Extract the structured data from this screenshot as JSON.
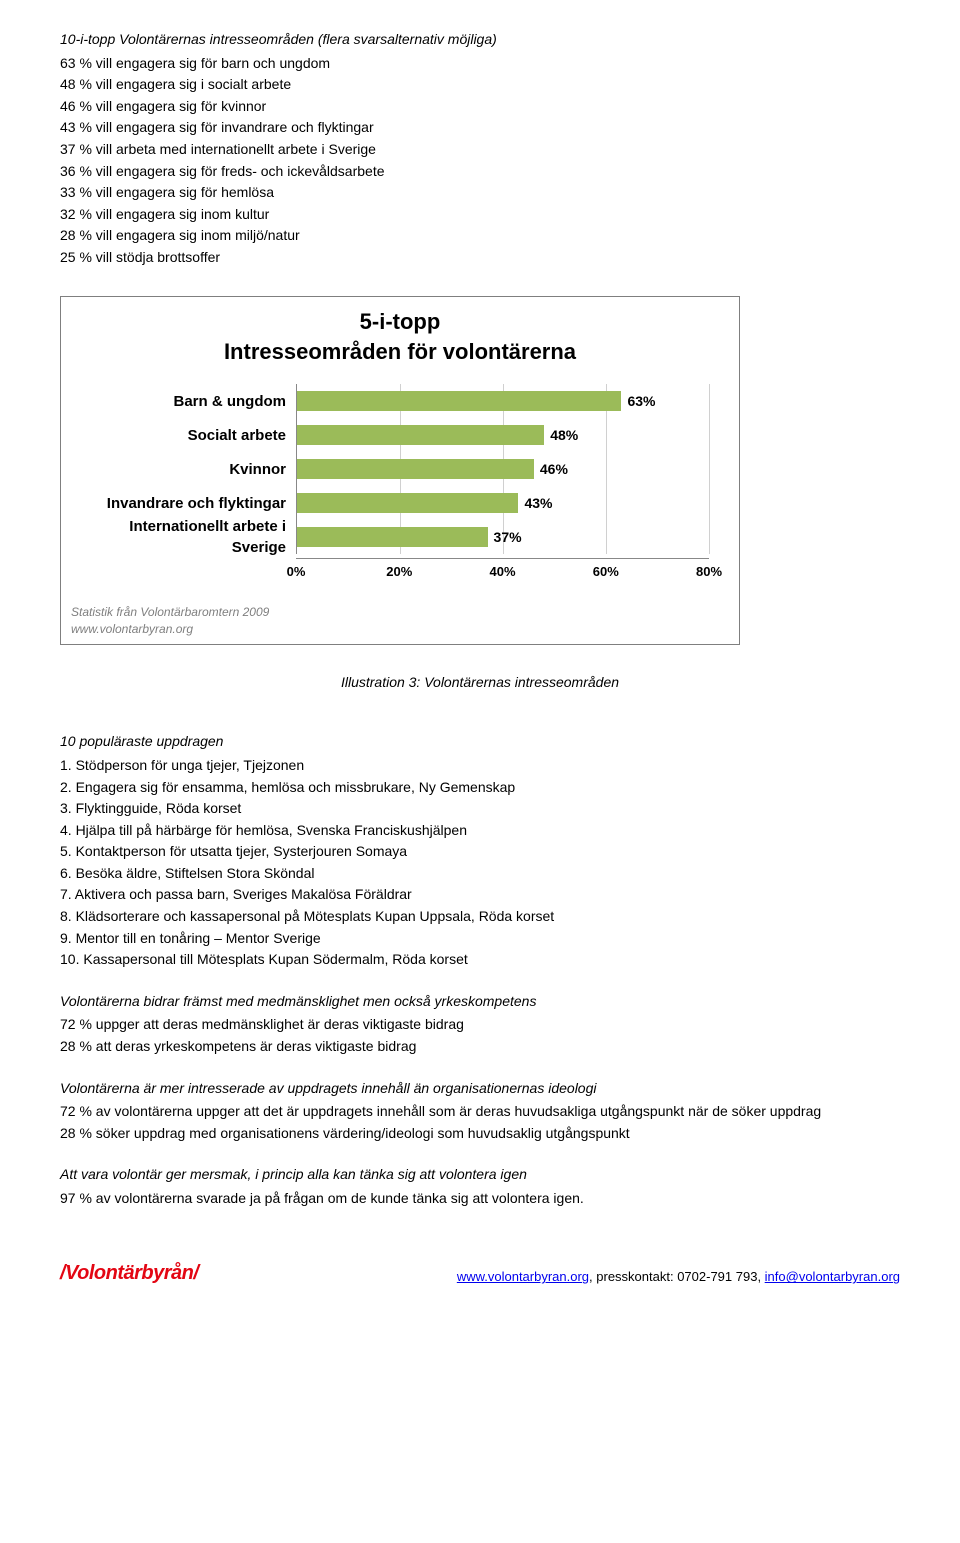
{
  "top10": {
    "title": "10-i-topp Volontärernas intresseområden (flera svarsalternativ möjliga)",
    "lines": [
      "63 % vill engagera sig för barn och ungdom",
      "48 % vill engagera sig i socialt arbete",
      "46 % vill engagera sig för kvinnor",
      "43 % vill engagera sig för invandrare och flyktingar",
      "37 % vill arbeta med internationellt arbete i Sverige",
      "36 % vill engagera sig för freds- och ickevåldsarbete",
      "33 % vill engagera sig för hemlösa",
      "32 % vill engagera sig inom kultur",
      "28 % vill engagera sig inom miljö/natur",
      "25 % vill stödja brottsoffer"
    ]
  },
  "chart": {
    "type": "bar-horizontal",
    "title_line1": "5-i-topp",
    "title_line2": "Intresseområden för volontärerna",
    "categories": [
      "Barn & ungdom",
      "Socialt arbete",
      "Kvinnor",
      "Invandrare och flyktingar",
      "Internationellt arbete i Sverige"
    ],
    "values": [
      63,
      48,
      46,
      43,
      37
    ],
    "value_labels": [
      "63%",
      "48%",
      "46%",
      "43%",
      "37%"
    ],
    "bar_color": "#9bbb59",
    "xmin": 0,
    "xmax": 80,
    "xtick_step": 20,
    "xticks": [
      "0%",
      "20%",
      "40%",
      "60%",
      "80%"
    ],
    "grid_color": "#d0d0d0",
    "cat_fontsize": 15,
    "title_fontsize": 22,
    "source_line1": "Statistik från Volontärbaromtern 2009",
    "source_line2": "www.volontarbyran.org"
  },
  "illustration_caption": "Illustration 3: Volontärernas intresseområden",
  "popular": {
    "title": "10 populäraste uppdragen",
    "items": [
      "1. Stödperson för unga tjejer, Tjejzonen",
      "2. Engagera sig för ensamma, hemlösa och missbrukare, Ny Gemenskap",
      "3. Flyktingguide, Röda korset",
      "4. Hjälpa till på härbärge för hemlösa, Svenska Franciskushjälpen",
      "5. Kontaktperson för utsatta tjejer, Systerjouren Somaya",
      "6. Besöka äldre, Stiftelsen Stora Sköndal",
      "7. Aktivera och passa barn, Sveriges Makalösa Föräldrar",
      "8. Klädsorterare och kassapersonal på Mötesplats Kupan Uppsala, Röda korset",
      "9. Mentor till en tonåring – Mentor Sverige",
      "10.  Kassapersonal till Mötesplats Kupan Södermalm, Röda korset"
    ]
  },
  "section3": {
    "title": "Volontärerna bidrar främst med medmänsklighet men också yrkeskompetens",
    "lines": [
      "72 % uppger att deras medmänsklighet är deras viktigaste bidrag",
      "28 % att deras yrkeskompetens är deras viktigaste bidrag"
    ]
  },
  "section4": {
    "title": "Volontärerna är mer intresserade av uppdragets innehåll än organisationernas ideologi",
    "lines": [
      "72 % av volontärerna uppger att det är uppdragets innehåll som är deras huvudsakliga utgångspunkt när de söker uppdrag",
      "28 % söker uppdrag med organisationens värdering/ideologi som huvudsaklig utgångspunkt"
    ]
  },
  "section5": {
    "title": "Att vara volontär ger mersmak, i princip alla kan tänka sig att volontera igen",
    "lines": [
      "97 % av volontärerna svarade ja på frågan om de kunde tänka sig att volontera igen."
    ]
  },
  "footer": {
    "logo_text": "Volontärbyrån",
    "contact_prefix": ", presskontakt: 0702-791 793, ",
    "link1": "www.volontarbyran.org",
    "link2": "info@volontarbyran.org",
    "link_color": "#0000ee",
    "logo_color": "#e30613"
  }
}
